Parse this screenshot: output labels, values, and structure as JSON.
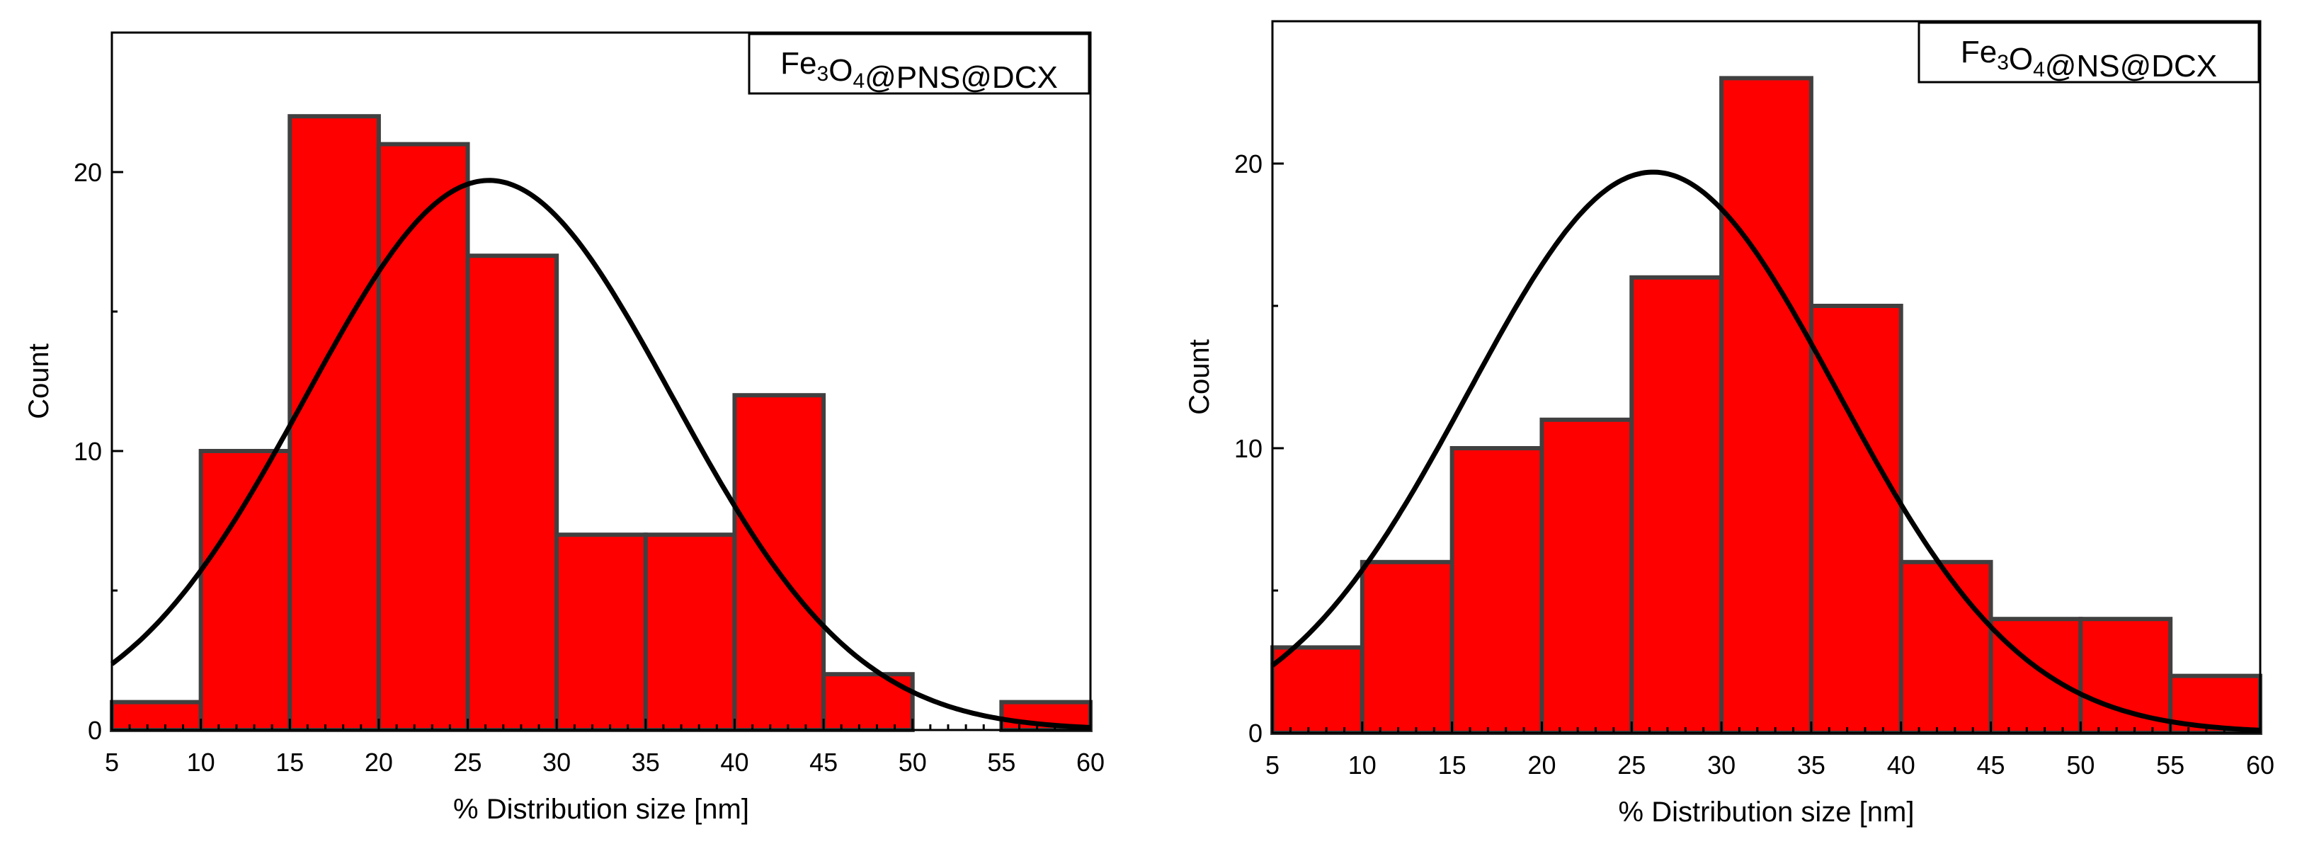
{
  "chart_data": [
    {
      "type": "bar",
      "title": "",
      "legend_label": {
        "pre": "Fe",
        "s1": "3",
        "mid": "O",
        "s2": "4",
        "post": "@PNS@DCX"
      },
      "xlabel": "% Distribution size [nm]",
      "ylabel": "Count",
      "xlim": [
        5,
        60
      ],
      "ylim": [
        0,
        25
      ],
      "x_ticks": [
        5,
        10,
        15,
        20,
        25,
        30,
        35,
        40,
        45,
        50,
        55,
        60
      ],
      "y_ticks": [
        0,
        10,
        20
      ],
      "bin_width": 5,
      "bins": [
        {
          "start": 5,
          "count": 1
        },
        {
          "start": 10,
          "count": 10
        },
        {
          "start": 15,
          "count": 22
        },
        {
          "start": 20,
          "count": 21
        },
        {
          "start": 25,
          "count": 17
        },
        {
          "start": 30,
          "count": 7
        },
        {
          "start": 35,
          "count": 7
        },
        {
          "start": 40,
          "count": 12
        },
        {
          "start": 45,
          "count": 2
        },
        {
          "start": 50,
          "count": 0
        },
        {
          "start": 55,
          "count": 1
        }
      ],
      "fit": {
        "type": "normal",
        "mean": 26.2,
        "sd": 10.3,
        "peak": 19.7
      },
      "bar_color": "#ff0000",
      "bar_edge_color": "#404040",
      "curve_color": "#000000",
      "legend_position": "top-right"
    },
    {
      "type": "bar",
      "title": "",
      "legend_label": {
        "pre": "Fe",
        "s1": "3",
        "mid": "O",
        "s2": "4",
        "post": "@NS@DCX"
      },
      "xlabel": "% Distribution size [nm]",
      "ylabel": "Count",
      "xlim": [
        5,
        60
      ],
      "ylim": [
        0,
        25
      ],
      "x_ticks": [
        5,
        10,
        15,
        20,
        25,
        30,
        35,
        40,
        45,
        50,
        55,
        60
      ],
      "y_ticks": [
        0,
        10,
        20
      ],
      "bin_width": 5,
      "bins": [
        {
          "start": 5,
          "count": 3
        },
        {
          "start": 10,
          "count": 6
        },
        {
          "start": 15,
          "count": 10
        },
        {
          "start": 20,
          "count": 11
        },
        {
          "start": 25,
          "count": 16
        },
        {
          "start": 30,
          "count": 23
        },
        {
          "start": 35,
          "count": 15
        },
        {
          "start": 40,
          "count": 6
        },
        {
          "start": 45,
          "count": 4
        },
        {
          "start": 50,
          "count": 4
        },
        {
          "start": 55,
          "count": 2
        }
      ],
      "fit": {
        "type": "normal",
        "mean": 26.2,
        "sd": 10.3,
        "peak": 19.7
      },
      "bar_color": "#ff0000",
      "bar_edge_color": "#404040",
      "curve_color": "#000000",
      "legend_position": "top-right"
    }
  ]
}
